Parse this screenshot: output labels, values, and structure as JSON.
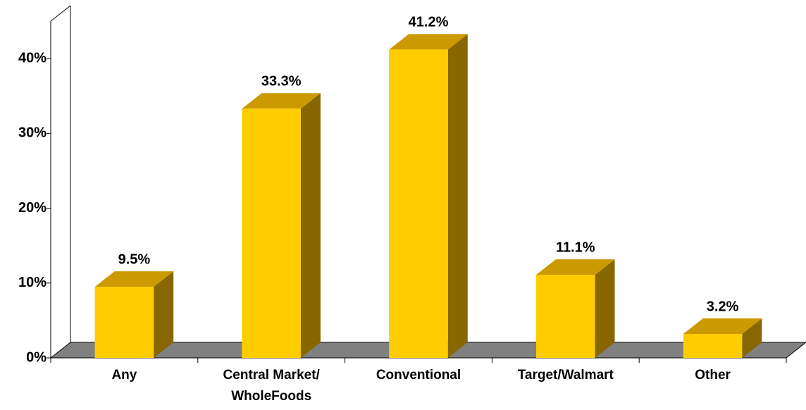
{
  "chart_data": {
    "type": "bar3d",
    "categories": [
      "Any",
      "Central Market/ WholeFoods",
      "Conventional",
      "Target/Walmart",
      "Other"
    ],
    "values": [
      9.5,
      33.3,
      41.2,
      11.1,
      3.2
    ],
    "value_labels": [
      "9.5%",
      "33.3%",
      "41.2%",
      "11.1%",
      "3.2%"
    ],
    "colors": {
      "front": "#ffcc00",
      "top": "#cc9900",
      "side": "#886600",
      "floor": "#808080"
    },
    "ylim": [
      0,
      45
    ],
    "yticks": [
      {
        "value": 0,
        "label": "0%"
      },
      {
        "value": 10,
        "label": "10%"
      },
      {
        "value": 20,
        "label": "20%"
      },
      {
        "value": 30,
        "label": "30%"
      },
      {
        "value": 40,
        "label": "40%"
      }
    ],
    "grid": false
  }
}
